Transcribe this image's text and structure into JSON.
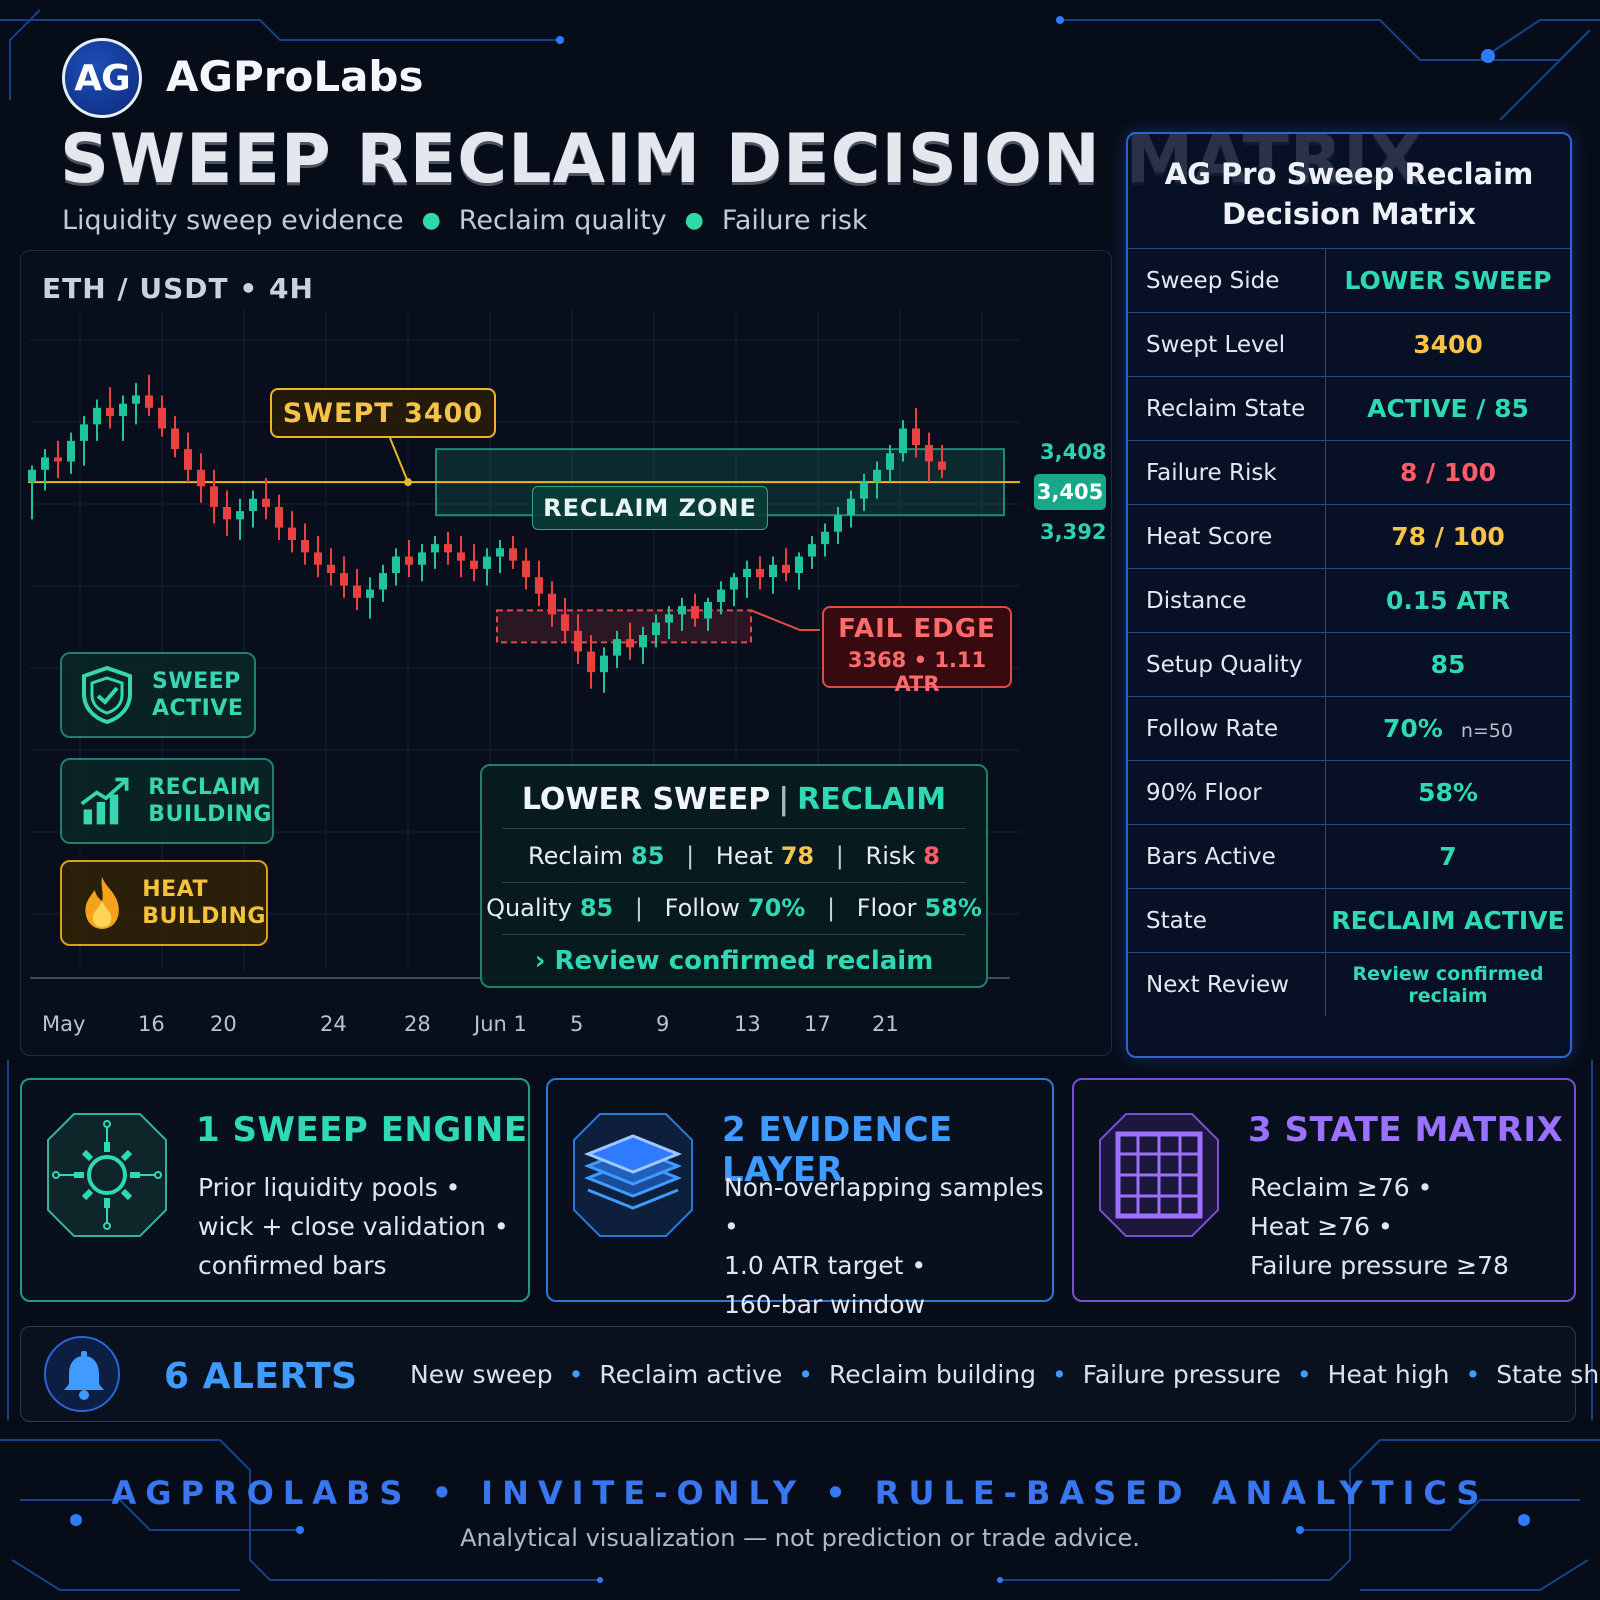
{
  "brand": {
    "logo_text": "AG",
    "name": "AGProLabs"
  },
  "title": "SWEEP RECLAIM DECISION MATRIX",
  "subtitle": {
    "items": [
      "Liquidity sweep evidence",
      "Reclaim quality",
      "Failure risk"
    ]
  },
  "colors": {
    "bull": "#1fc49a",
    "bear": "#e8413f",
    "level": "#f0b429",
    "zone": "#1c8c7a",
    "fail": "#e04a4a",
    "accent_blue": "#3f9bff"
  },
  "chart": {
    "pair": "ETH / USDT • 4H",
    "swept_label": "SWEPT 3400",
    "reclaim_label": "RECLAIM ZONE",
    "fail_title": "FAIL EDGE",
    "fail_detail": "3368 • 1.11 ATR",
    "price_current": "3,405",
    "price_high": "3,408",
    "price_low": "3,392",
    "x_ticks": [
      "May",
      "16",
      "20",
      "24",
      "28",
      "Jun 1",
      "5",
      "9",
      "13",
      "17",
      "21"
    ]
  },
  "chart_data": {
    "type": "candlestick",
    "swept_level": 3400,
    "reclaim_zone": [
      3392,
      3408
    ],
    "current_price": 3405,
    "fail_edge": 3368,
    "ohlc": [
      [
        3400,
        3404,
        3391,
        3403
      ],
      [
        3403,
        3408,
        3398,
        3406
      ],
      [
        3406,
        3410,
        3401,
        3405
      ],
      [
        3405,
        3412,
        3402,
        3410
      ],
      [
        3410,
        3416,
        3404,
        3414
      ],
      [
        3414,
        3420,
        3410,
        3418
      ],
      [
        3418,
        3423,
        3413,
        3416
      ],
      [
        3416,
        3421,
        3410,
        3419
      ],
      [
        3419,
        3424,
        3414,
        3421
      ],
      [
        3421,
        3426,
        3416,
        3418
      ],
      [
        3418,
        3421,
        3411,
        3413
      ],
      [
        3413,
        3416,
        3406,
        3408
      ],
      [
        3408,
        3412,
        3400,
        3403
      ],
      [
        3403,
        3407,
        3395,
        3399
      ],
      [
        3399,
        3403,
        3390,
        3394
      ],
      [
        3394,
        3398,
        3387,
        3391
      ],
      [
        3391,
        3396,
        3386,
        3393
      ],
      [
        3393,
        3398,
        3389,
        3396
      ],
      [
        3396,
        3401,
        3391,
        3394
      ],
      [
        3394,
        3397,
        3386,
        3389
      ],
      [
        3389,
        3393,
        3383,
        3386
      ],
      [
        3386,
        3390,
        3380,
        3383
      ],
      [
        3383,
        3387,
        3377,
        3380
      ],
      [
        3380,
        3384,
        3375,
        3378
      ],
      [
        3378,
        3382,
        3372,
        3375
      ],
      [
        3375,
        3379,
        3369,
        3372
      ],
      [
        3372,
        3377,
        3367,
        3374
      ],
      [
        3374,
        3380,
        3371,
        3378
      ],
      [
        3378,
        3384,
        3375,
        3382
      ],
      [
        3382,
        3386,
        3377,
        3380
      ],
      [
        3380,
        3385,
        3376,
        3383
      ],
      [
        3383,
        3387,
        3379,
        3385
      ],
      [
        3385,
        3388,
        3380,
        3383
      ],
      [
        3383,
        3387,
        3377,
        3381
      ],
      [
        3381,
        3385,
        3376,
        3379
      ],
      [
        3379,
        3384,
        3375,
        3382
      ],
      [
        3382,
        3386,
        3378,
        3384
      ],
      [
        3384,
        3387,
        3379,
        3381
      ],
      [
        3381,
        3384,
        3374,
        3377
      ],
      [
        3377,
        3381,
        3370,
        3373
      ],
      [
        3373,
        3376,
        3365,
        3368
      ],
      [
        3368,
        3372,
        3361,
        3364
      ],
      [
        3364,
        3368,
        3356,
        3359
      ],
      [
        3359,
        3363,
        3350,
        3354
      ],
      [
        3354,
        3360,
        3349,
        3358
      ],
      [
        3358,
        3364,
        3355,
        3362
      ],
      [
        3362,
        3366,
        3357,
        3360
      ],
      [
        3360,
        3365,
        3356,
        3363
      ],
      [
        3363,
        3368,
        3360,
        3366
      ],
      [
        3366,
        3370,
        3362,
        3368
      ],
      [
        3368,
        3372,
        3364,
        3370
      ],
      [
        3370,
        3373,
        3365,
        3367
      ],
      [
        3367,
        3372,
        3364,
        3371
      ],
      [
        3371,
        3376,
        3368,
        3374
      ],
      [
        3374,
        3378,
        3370,
        3377
      ],
      [
        3377,
        3381,
        3372,
        3379
      ],
      [
        3379,
        3382,
        3374,
        3377
      ],
      [
        3377,
        3382,
        3373,
        3380
      ],
      [
        3380,
        3384,
        3376,
        3378
      ],
      [
        3378,
        3383,
        3374,
        3382
      ],
      [
        3382,
        3387,
        3379,
        3385
      ],
      [
        3385,
        3390,
        3382,
        3388
      ],
      [
        3388,
        3394,
        3385,
        3392
      ],
      [
        3392,
        3398,
        3389,
        3396
      ],
      [
        3396,
        3402,
        3393,
        3400
      ],
      [
        3400,
        3405,
        3396,
        3403
      ],
      [
        3403,
        3409,
        3400,
        3407
      ],
      [
        3407,
        3415,
        3405,
        3413
      ],
      [
        3413,
        3418,
        3406,
        3409
      ],
      [
        3409,
        3412,
        3400,
        3405
      ],
      [
        3405,
        3409,
        3401,
        3403
      ]
    ]
  },
  "badges": {
    "sweep": [
      "SWEEP",
      "ACTIVE"
    ],
    "reclaim": [
      "RECLAIM",
      "BUILDING"
    ],
    "heat": [
      "HEAT",
      "BUILDING"
    ]
  },
  "summary": {
    "left": "LOWER SWEEP",
    "sep": "|",
    "right": "RECLAIM",
    "reclaim_label": "Reclaim",
    "reclaim_value": "85",
    "heat_label": "Heat",
    "heat_value": "78",
    "risk_label": "Risk",
    "risk_value": "8",
    "quality_label": "Quality",
    "quality_value": "85",
    "follow_label": "Follow",
    "follow_value": "70%",
    "floor_label": "Floor",
    "floor_value": "58%",
    "review": "› Review confirmed reclaim"
  },
  "matrix": {
    "title_line1": "AG Pro Sweep Reclaim",
    "title_line2": "Decision Matrix",
    "rows": [
      {
        "label": "Sweep Side",
        "value": "LOWER SWEEP",
        "tone": "green"
      },
      {
        "label": "Swept Level",
        "value": "3400",
        "tone": "gold"
      },
      {
        "label": "Reclaim State",
        "value": "ACTIVE / 85",
        "tone": "green"
      },
      {
        "label": "Failure Risk",
        "value": "8 / 100",
        "tone": "red"
      },
      {
        "label": "Heat Score",
        "value": "78 / 100",
        "tone": "gold"
      },
      {
        "label": "Distance",
        "value": "0.15 ATR",
        "tone": "green"
      },
      {
        "label": "Setup Quality",
        "value": "85",
        "tone": "green"
      },
      {
        "label": "Follow Rate",
        "value": "70%",
        "tone": "green",
        "extra": "n=50"
      },
      {
        "label": "90% Floor",
        "value": "58%",
        "tone": "green"
      },
      {
        "label": "Bars Active",
        "value": "7",
        "tone": "green"
      },
      {
        "label": "State",
        "value": "RECLAIM ACTIVE",
        "tone": "green"
      },
      {
        "label": "Next Review",
        "value": "Review confirmed reclaim",
        "tone": "green",
        "small": true
      }
    ]
  },
  "steps": [
    {
      "title": "1  SWEEP ENGINE",
      "lines": [
        "Prior liquidity pools •",
        "wick + close validation •",
        "confirmed bars"
      ],
      "icon": "gear-circuit-icon"
    },
    {
      "title": "2  EVIDENCE LAYER",
      "lines": [
        "Non-overlapping samples •",
        "1.0 ATR target •",
        "160-bar window"
      ],
      "icon": "layers-icon"
    },
    {
      "title": "3  STATE MATRIX",
      "lines": [
        "Reclaim ≥76 •",
        "Heat ≥76 •",
        "Failure pressure ≥78"
      ],
      "icon": "grid-icon"
    }
  ],
  "alerts": {
    "title": "6 ALERTS",
    "items": [
      "New sweep",
      "Reclaim active",
      "Reclaim building",
      "Failure pressure",
      "Heat high",
      "State shift"
    ]
  },
  "footer": {
    "main": "AGPROLABS • INVITE-ONLY • RULE-BASED ANALYTICS",
    "sub": "Analytical visualization — not prediction or trade advice."
  }
}
